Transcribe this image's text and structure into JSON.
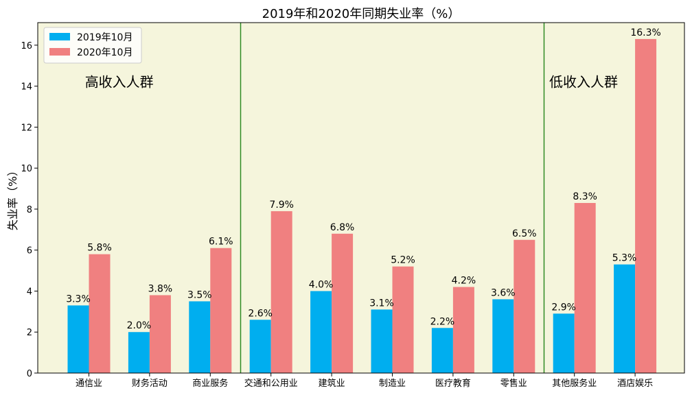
{
  "chart_data": {
    "type": "bar",
    "title": "2019年和2020年同期失业率（%）",
    "xlabel": "",
    "ylabel": "失业率（%）",
    "ylim": [
      0,
      17.1
    ],
    "yticks": [
      "0",
      "2",
      "4",
      "6",
      "8",
      "10",
      "12",
      "14",
      "16"
    ],
    "grid": false,
    "legend_position": "top-left",
    "background_color": "#f5f5dc",
    "categories": [
      "通信业",
      "财务活动",
      "商业服务",
      "交通和公用业",
      "建筑业",
      "制造业",
      "医疗教育",
      "零售业",
      "其他服务业",
      "酒店娱乐"
    ],
    "series": [
      {
        "name": "2019年10月",
        "color": "#00aeef",
        "values": [
          3.3,
          2.0,
          3.5,
          2.6,
          4.0,
          3.1,
          2.2,
          3.6,
          2.9,
          5.3
        ],
        "labels": [
          "3.3%",
          "2.0%",
          "3.5%",
          "2.6%",
          "4.0%",
          "3.1%",
          "2.2%",
          "3.6%",
          "2.9%",
          "5.3%"
        ]
      },
      {
        "name": "2020年10月",
        "color": "#f08080",
        "values": [
          5.8,
          3.8,
          6.1,
          7.9,
          6.8,
          5.2,
          4.2,
          6.5,
          8.3,
          16.3
        ],
        "labels": [
          "5.8%",
          "3.8%",
          "6.1%",
          "7.9%",
          "6.8%",
          "5.2%",
          "4.2%",
          "6.5%",
          "8.3%",
          "16.3%"
        ]
      }
    ],
    "divider_color": "#2e8b22",
    "annotations": [
      {
        "text": "高收入人群",
        "x_category": 0.5,
        "y": 14.2
      },
      {
        "text": "低收入人群",
        "x_category": 8.15,
        "y": 14.2
      }
    ]
  }
}
